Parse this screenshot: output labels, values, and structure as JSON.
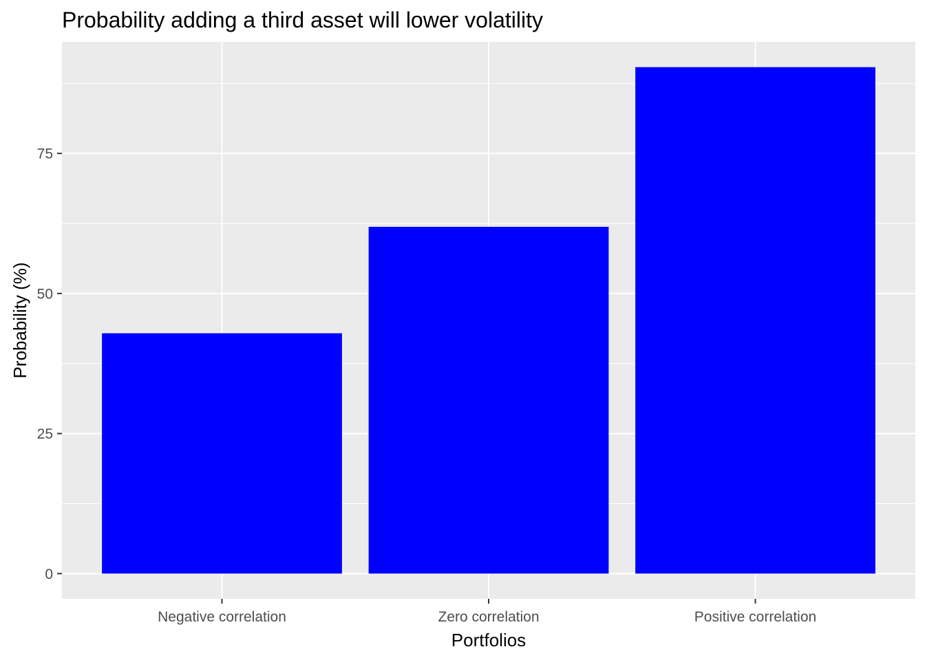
{
  "chart_data": {
    "type": "bar",
    "title": "Probability adding a third asset will lower volatility",
    "xlabel": "Portfolios",
    "ylabel": "Probability (%)",
    "categories": [
      "Negative correlation",
      "Zero correlation",
      "Positive correlation"
    ],
    "values": [
      42.9,
      61.9,
      90.4
    ],
    "ylim": [
      -4.5,
      94.9
    ],
    "yticks": [
      0,
      25,
      50,
      75
    ],
    "ytick_labels": [
      "0",
      "25",
      "50",
      "75"
    ],
    "grid": true,
    "legend": "none",
    "colors": {
      "bar": "#0000FF",
      "panel_background": "#EBEBEB",
      "grid": "#FFFFFF",
      "tick_text": "#4D4D4D",
      "tick_mark": "#333333"
    }
  }
}
